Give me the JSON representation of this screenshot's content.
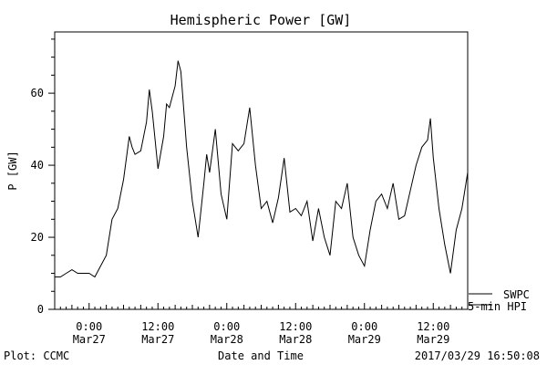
{
  "chart_data": {
    "type": "line",
    "title": "Hemispheric Power [GW]",
    "ylabel": "P [GW]",
    "xlabel": "Date and Time",
    "ylim": [
      0,
      77
    ],
    "yticks": [
      0,
      20,
      40,
      60
    ],
    "xlim": [
      "2017-03-26T18:00",
      "2017-03-29T18:00"
    ],
    "xticks": [
      {
        "t": "2017-03-27T00:00",
        "line1": "0:00",
        "line2": "Mar27"
      },
      {
        "t": "2017-03-27T12:00",
        "line1": "12:00",
        "line2": "Mar27"
      },
      {
        "t": "2017-03-28T00:00",
        "line1": "0:00",
        "line2": "Mar28"
      },
      {
        "t": "2017-03-28T12:00",
        "line1": "12:00",
        "line2": "Mar28"
      },
      {
        "t": "2017-03-29T00:00",
        "line1": "0:00",
        "line2": "Mar29"
      },
      {
        "t": "2017-03-29T12:00",
        "line1": "12:00",
        "line2": "Mar29"
      }
    ],
    "legend": [
      {
        "label": "SWPC",
        "style": "solid"
      },
      {
        "label": "5-min HPI",
        "style": "solid"
      }
    ],
    "series": [
      {
        "name": "5-min HPI",
        "points": [
          [
            "2017-03-26T18:00",
            9
          ],
          [
            "2017-03-26T19:00",
            9
          ],
          [
            "2017-03-26T20:00",
            10
          ],
          [
            "2017-03-26T21:00",
            11
          ],
          [
            "2017-03-26T22:00",
            10
          ],
          [
            "2017-03-26T23:00",
            10
          ],
          [
            "2017-03-27T00:00",
            10
          ],
          [
            "2017-03-27T01:00",
            9
          ],
          [
            "2017-03-27T02:00",
            12
          ],
          [
            "2017-03-27T03:00",
            15
          ],
          [
            "2017-03-27T04:00",
            25
          ],
          [
            "2017-03-27T05:00",
            28
          ],
          [
            "2017-03-27T06:00",
            36
          ],
          [
            "2017-03-27T07:00",
            48
          ],
          [
            "2017-03-27T07:30",
            45
          ],
          [
            "2017-03-27T08:00",
            43
          ],
          [
            "2017-03-27T09:00",
            44
          ],
          [
            "2017-03-27T10:00",
            52
          ],
          [
            "2017-03-27T10:30",
            61
          ],
          [
            "2017-03-27T11:00",
            55
          ],
          [
            "2017-03-27T12:00",
            39
          ],
          [
            "2017-03-27T13:00",
            48
          ],
          [
            "2017-03-27T13:30",
            57
          ],
          [
            "2017-03-27T14:00",
            56
          ],
          [
            "2017-03-27T15:00",
            62
          ],
          [
            "2017-03-27T15:30",
            69
          ],
          [
            "2017-03-27T16:00",
            66
          ],
          [
            "2017-03-27T17:00",
            45
          ],
          [
            "2017-03-27T18:00",
            30
          ],
          [
            "2017-03-27T19:00",
            20
          ],
          [
            "2017-03-27T20:00",
            35
          ],
          [
            "2017-03-27T20:30",
            43
          ],
          [
            "2017-03-27T21:00",
            38
          ],
          [
            "2017-03-27T22:00",
            50
          ],
          [
            "2017-03-27T23:00",
            32
          ],
          [
            "2017-03-28T00:00",
            25
          ],
          [
            "2017-03-28T01:00",
            46
          ],
          [
            "2017-03-28T02:00",
            44
          ],
          [
            "2017-03-28T03:00",
            46
          ],
          [
            "2017-03-28T04:00",
            56
          ],
          [
            "2017-03-28T05:00",
            40
          ],
          [
            "2017-03-28T06:00",
            28
          ],
          [
            "2017-03-28T07:00",
            30
          ],
          [
            "2017-03-28T08:00",
            24
          ],
          [
            "2017-03-28T09:00",
            31
          ],
          [
            "2017-03-28T10:00",
            42
          ],
          [
            "2017-03-28T11:00",
            27
          ],
          [
            "2017-03-28T12:00",
            28
          ],
          [
            "2017-03-28T13:00",
            26
          ],
          [
            "2017-03-28T14:00",
            30
          ],
          [
            "2017-03-28T15:00",
            19
          ],
          [
            "2017-03-28T16:00",
            28
          ],
          [
            "2017-03-28T17:00",
            20
          ],
          [
            "2017-03-28T18:00",
            15
          ],
          [
            "2017-03-28T19:00",
            30
          ],
          [
            "2017-03-28T20:00",
            28
          ],
          [
            "2017-03-28T21:00",
            35
          ],
          [
            "2017-03-28T22:00",
            20
          ],
          [
            "2017-03-28T23:00",
            15
          ],
          [
            "2017-03-29T00:00",
            12
          ],
          [
            "2017-03-29T01:00",
            22
          ],
          [
            "2017-03-29T02:00",
            30
          ],
          [
            "2017-03-29T03:00",
            32
          ],
          [
            "2017-03-29T04:00",
            28
          ],
          [
            "2017-03-29T05:00",
            35
          ],
          [
            "2017-03-29T06:00",
            25
          ],
          [
            "2017-03-29T07:00",
            26
          ],
          [
            "2017-03-29T08:00",
            33
          ],
          [
            "2017-03-29T09:00",
            40
          ],
          [
            "2017-03-29T10:00",
            45
          ],
          [
            "2017-03-29T11:00",
            47
          ],
          [
            "2017-03-29T11:30",
            53
          ],
          [
            "2017-03-29T12:00",
            42
          ],
          [
            "2017-03-29T13:00",
            28
          ],
          [
            "2017-03-29T14:00",
            18
          ],
          [
            "2017-03-29T15:00",
            10
          ],
          [
            "2017-03-29T16:00",
            22
          ],
          [
            "2017-03-29T17:00",
            28
          ],
          [
            "2017-03-29T18:00",
            38
          ]
        ]
      }
    ],
    "footer": {
      "left": "Plot: CCMC",
      "center": "Date and Time",
      "right": "2017/03/29 16:50:08"
    }
  }
}
